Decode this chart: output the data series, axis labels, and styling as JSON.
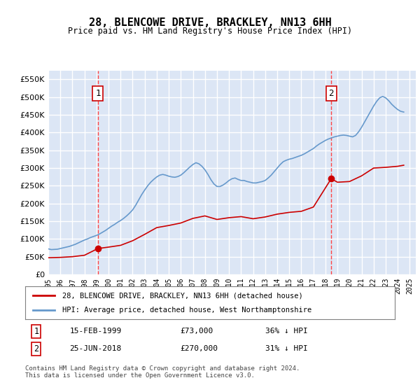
{
  "title": "28, BLENCOWE DRIVE, BRACKLEY, NN13 6HH",
  "subtitle": "Price paid vs. HM Land Registry's House Price Index (HPI)",
  "ylabel_ticks": [
    0,
    50000,
    100000,
    150000,
    200000,
    250000,
    300000,
    350000,
    400000,
    450000,
    500000,
    550000
  ],
  "ylim": [
    0,
    575000
  ],
  "xlim_start": 1995.0,
  "xlim_end": 2025.5,
  "background_color": "#e8eef8",
  "plot_bg_color": "#dce6f5",
  "grid_color": "#ffffff",
  "transaction1_date": 1999.12,
  "transaction1_price": 73000,
  "transaction1_label": "1",
  "transaction1_text": "15-FEB-1999",
  "transaction1_amount": "£73,000",
  "transaction1_pct": "36% ↓ HPI",
  "transaction2_date": 2018.48,
  "transaction2_price": 270000,
  "transaction2_label": "2",
  "transaction2_text": "25-JUN-2018",
  "transaction2_amount": "£270,000",
  "transaction2_pct": "31% ↓ HPI",
  "red_line_color": "#cc0000",
  "blue_line_color": "#6699cc",
  "dashed_line_color": "#ff4444",
  "legend_label_red": "28, BLENCOWE DRIVE, BRACKLEY, NN13 6HH (detached house)",
  "legend_label_blue": "HPI: Average price, detached house, West Northamptonshire",
  "footer": "Contains HM Land Registry data © Crown copyright and database right 2024.\nThis data is licensed under the Open Government Licence v3.0.",
  "hpi_data": {
    "years": [
      1995.0,
      1995.25,
      1995.5,
      1995.75,
      1996.0,
      1996.25,
      1996.5,
      1996.75,
      1997.0,
      1997.25,
      1997.5,
      1997.75,
      1998.0,
      1998.25,
      1998.5,
      1998.75,
      1999.0,
      1999.25,
      1999.5,
      1999.75,
      2000.0,
      2000.25,
      2000.5,
      2000.75,
      2001.0,
      2001.25,
      2001.5,
      2001.75,
      2002.0,
      2002.25,
      2002.5,
      2002.75,
      2003.0,
      2003.25,
      2003.5,
      2003.75,
      2004.0,
      2004.25,
      2004.5,
      2004.75,
      2005.0,
      2005.25,
      2005.5,
      2005.75,
      2006.0,
      2006.25,
      2006.5,
      2006.75,
      2007.0,
      2007.25,
      2007.5,
      2007.75,
      2008.0,
      2008.25,
      2008.5,
      2008.75,
      2009.0,
      2009.25,
      2009.5,
      2009.75,
      2010.0,
      2010.25,
      2010.5,
      2010.75,
      2011.0,
      2011.25,
      2011.5,
      2011.75,
      2012.0,
      2012.25,
      2012.5,
      2012.75,
      2013.0,
      2013.25,
      2013.5,
      2013.75,
      2014.0,
      2014.25,
      2014.5,
      2014.75,
      2015.0,
      2015.25,
      2015.5,
      2015.75,
      2016.0,
      2016.25,
      2016.5,
      2016.75,
      2017.0,
      2017.25,
      2017.5,
      2017.75,
      2018.0,
      2018.25,
      2018.5,
      2018.75,
      2019.0,
      2019.25,
      2019.5,
      2019.75,
      2020.0,
      2020.25,
      2020.5,
      2020.75,
      2021.0,
      2021.25,
      2021.5,
      2021.75,
      2022.0,
      2022.25,
      2022.5,
      2022.75,
      2023.0,
      2023.25,
      2023.5,
      2023.75,
      2024.0,
      2024.25,
      2024.5
    ],
    "values": [
      72000,
      70000,
      70500,
      71000,
      73000,
      75000,
      77000,
      79000,
      82000,
      85000,
      89000,
      93000,
      97000,
      100000,
      104000,
      107000,
      110000,
      114000,
      119000,
      124000,
      130000,
      136000,
      141000,
      147000,
      152000,
      158000,
      165000,
      173000,
      182000,
      195000,
      210000,
      225000,
      238000,
      250000,
      260000,
      268000,
      275000,
      280000,
      282000,
      280000,
      277000,
      275000,
      274000,
      276000,
      280000,
      287000,
      295000,
      303000,
      310000,
      315000,
      312000,
      305000,
      295000,
      282000,
      267000,
      255000,
      248000,
      248000,
      252000,
      258000,
      265000,
      270000,
      272000,
      268000,
      265000,
      265000,
      262000,
      260000,
      258000,
      258000,
      260000,
      262000,
      265000,
      272000,
      280000,
      290000,
      300000,
      310000,
      318000,
      322000,
      325000,
      327000,
      330000,
      333000,
      336000,
      340000,
      345000,
      350000,
      355000,
      362000,
      368000,
      373000,
      378000,
      382000,
      385000,
      388000,
      390000,
      392000,
      393000,
      392000,
      390000,
      388000,
      392000,
      402000,
      415000,
      430000,
      445000,
      460000,
      475000,
      488000,
      498000,
      502000,
      498000,
      490000,
      480000,
      472000,
      465000,
      460000,
      458000
    ]
  },
  "red_data": {
    "years": [
      1995.0,
      1996.0,
      1997.0,
      1998.0,
      1999.12,
      2000.0,
      2001.0,
      2002.0,
      2003.0,
      2004.0,
      2005.0,
      2006.0,
      2007.0,
      2008.0,
      2009.0,
      2010.0,
      2011.0,
      2012.0,
      2013.0,
      2014.0,
      2015.0,
      2016.0,
      2017.0,
      2018.48,
      2019.0,
      2020.0,
      2021.0,
      2022.0,
      2023.0,
      2024.0,
      2024.5
    ],
    "values": [
      47000,
      48000,
      50000,
      54000,
      73000,
      77000,
      82000,
      95000,
      113000,
      132000,
      138000,
      145000,
      158000,
      165000,
      155000,
      160000,
      163000,
      157000,
      162000,
      170000,
      175000,
      178000,
      190000,
      270000,
      260000,
      262000,
      278000,
      300000,
      302000,
      305000,
      308000
    ]
  }
}
